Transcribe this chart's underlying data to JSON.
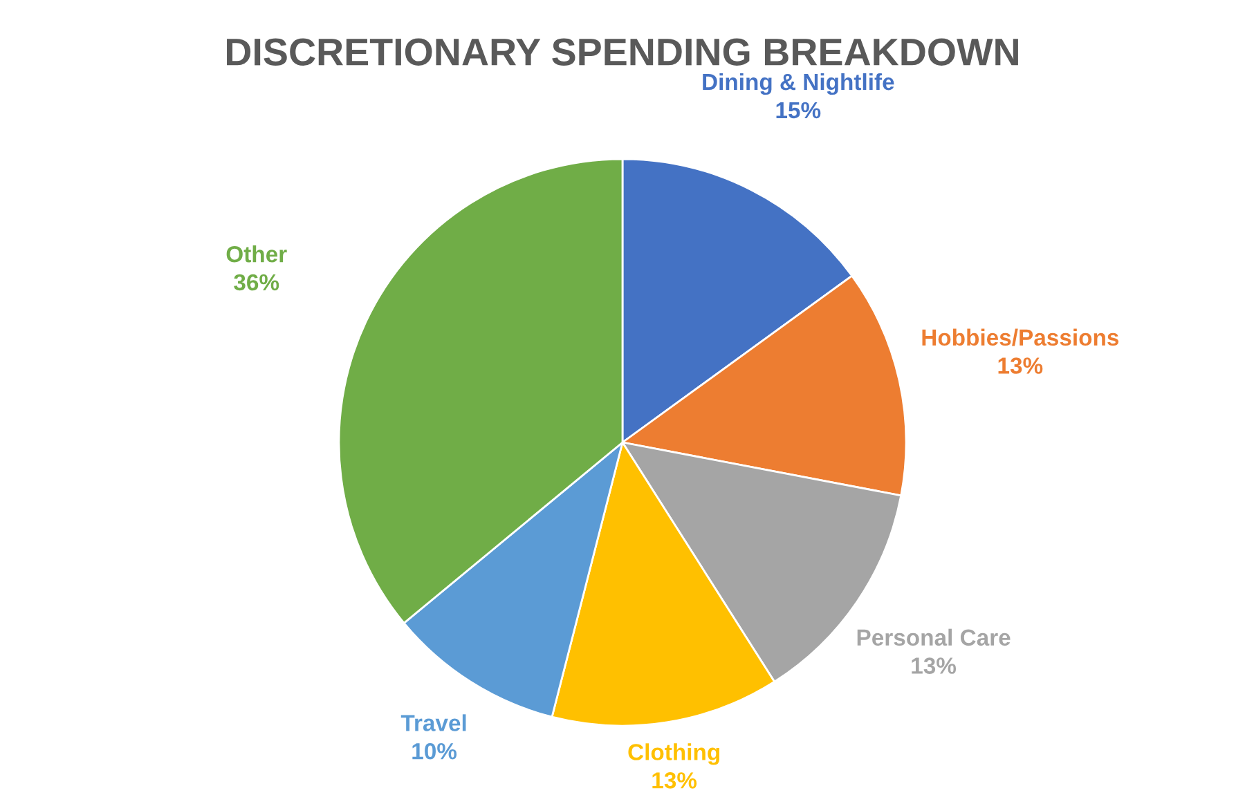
{
  "chart_data": {
    "type": "pie",
    "title": "DISCRETIONARY SPENDING BREAKDOWN",
    "categories": [
      "Dining & Nightlife",
      "Hobbies/Passions",
      "Personal Care",
      "Clothing",
      "Travel",
      "Other"
    ],
    "values": [
      15,
      13,
      13,
      13,
      10,
      36
    ],
    "value_labels": [
      "15%",
      "13%",
      "13%",
      "13%",
      "10%",
      "36%"
    ],
    "colors": [
      "#4472c4",
      "#ed7d31",
      "#a5a5a5",
      "#ffc000",
      "#5b9bd5",
      "#70ad47"
    ],
    "legend": false
  }
}
